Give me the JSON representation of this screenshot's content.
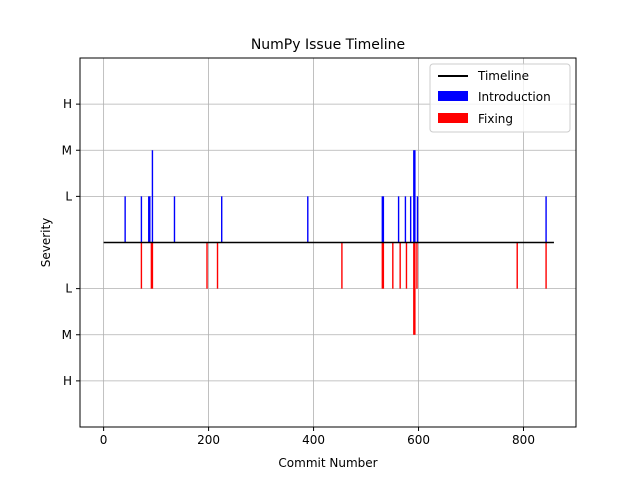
{
  "chart_data": {
    "type": "bar",
    "title": "NumPy Issue Timeline",
    "xlabel": "Commit Number",
    "ylabel": "Severity",
    "xlim": [
      -45,
      900
    ],
    "ylim": [
      -4,
      4
    ],
    "x_ticks": [
      0,
      200,
      400,
      600,
      800
    ],
    "y_ticks": [
      {
        "value": 3,
        "label": "H"
      },
      {
        "value": 2,
        "label": "M"
      },
      {
        "value": 1,
        "label": "L"
      },
      {
        "value": -1,
        "label": "L"
      },
      {
        "value": -2,
        "label": "M"
      },
      {
        "value": -3,
        "label": "H"
      }
    ],
    "grid": true,
    "legend_position": "top-right",
    "timeline": {
      "name": "Timeline",
      "x": [
        0,
        858
      ],
      "y": 0,
      "color": "#000000"
    },
    "series": [
      {
        "name": "Introduction",
        "color": "#0000ff",
        "points": [
          {
            "x": 41,
            "value": 1
          },
          {
            "x": 72,
            "value": 1
          },
          {
            "x": 86,
            "value": 1
          },
          {
            "x": 88,
            "value": 1
          },
          {
            "x": 93,
            "value": 2
          },
          {
            "x": 135,
            "value": 1
          },
          {
            "x": 225,
            "value": 1
          },
          {
            "x": 389,
            "value": 1
          },
          {
            "x": 531,
            "value": 1
          },
          {
            "x": 533,
            "value": 1
          },
          {
            "x": 562,
            "value": 1
          },
          {
            "x": 575,
            "value": 1
          },
          {
            "x": 585,
            "value": 1
          },
          {
            "x": 591,
            "value": 2
          },
          {
            "x": 593,
            "value": 2
          },
          {
            "x": 598,
            "value": 1
          },
          {
            "x": 843,
            "value": 1
          }
        ]
      },
      {
        "name": "Fixing",
        "color": "#ff0000",
        "points": [
          {
            "x": 72,
            "value": 1
          },
          {
            "x": 91,
            "value": 1
          },
          {
            "x": 93,
            "value": 1
          },
          {
            "x": 197,
            "value": 1
          },
          {
            "x": 217,
            "value": 1
          },
          {
            "x": 454,
            "value": 1
          },
          {
            "x": 531,
            "value": 1
          },
          {
            "x": 533,
            "value": 1
          },
          {
            "x": 551,
            "value": 1
          },
          {
            "x": 565,
            "value": 1
          },
          {
            "x": 577,
            "value": 1
          },
          {
            "x": 591,
            "value": 2
          },
          {
            "x": 593,
            "value": 2
          },
          {
            "x": 597,
            "value": 1
          },
          {
            "x": 788,
            "value": 1
          },
          {
            "x": 843,
            "value": 1
          }
        ]
      }
    ]
  }
}
